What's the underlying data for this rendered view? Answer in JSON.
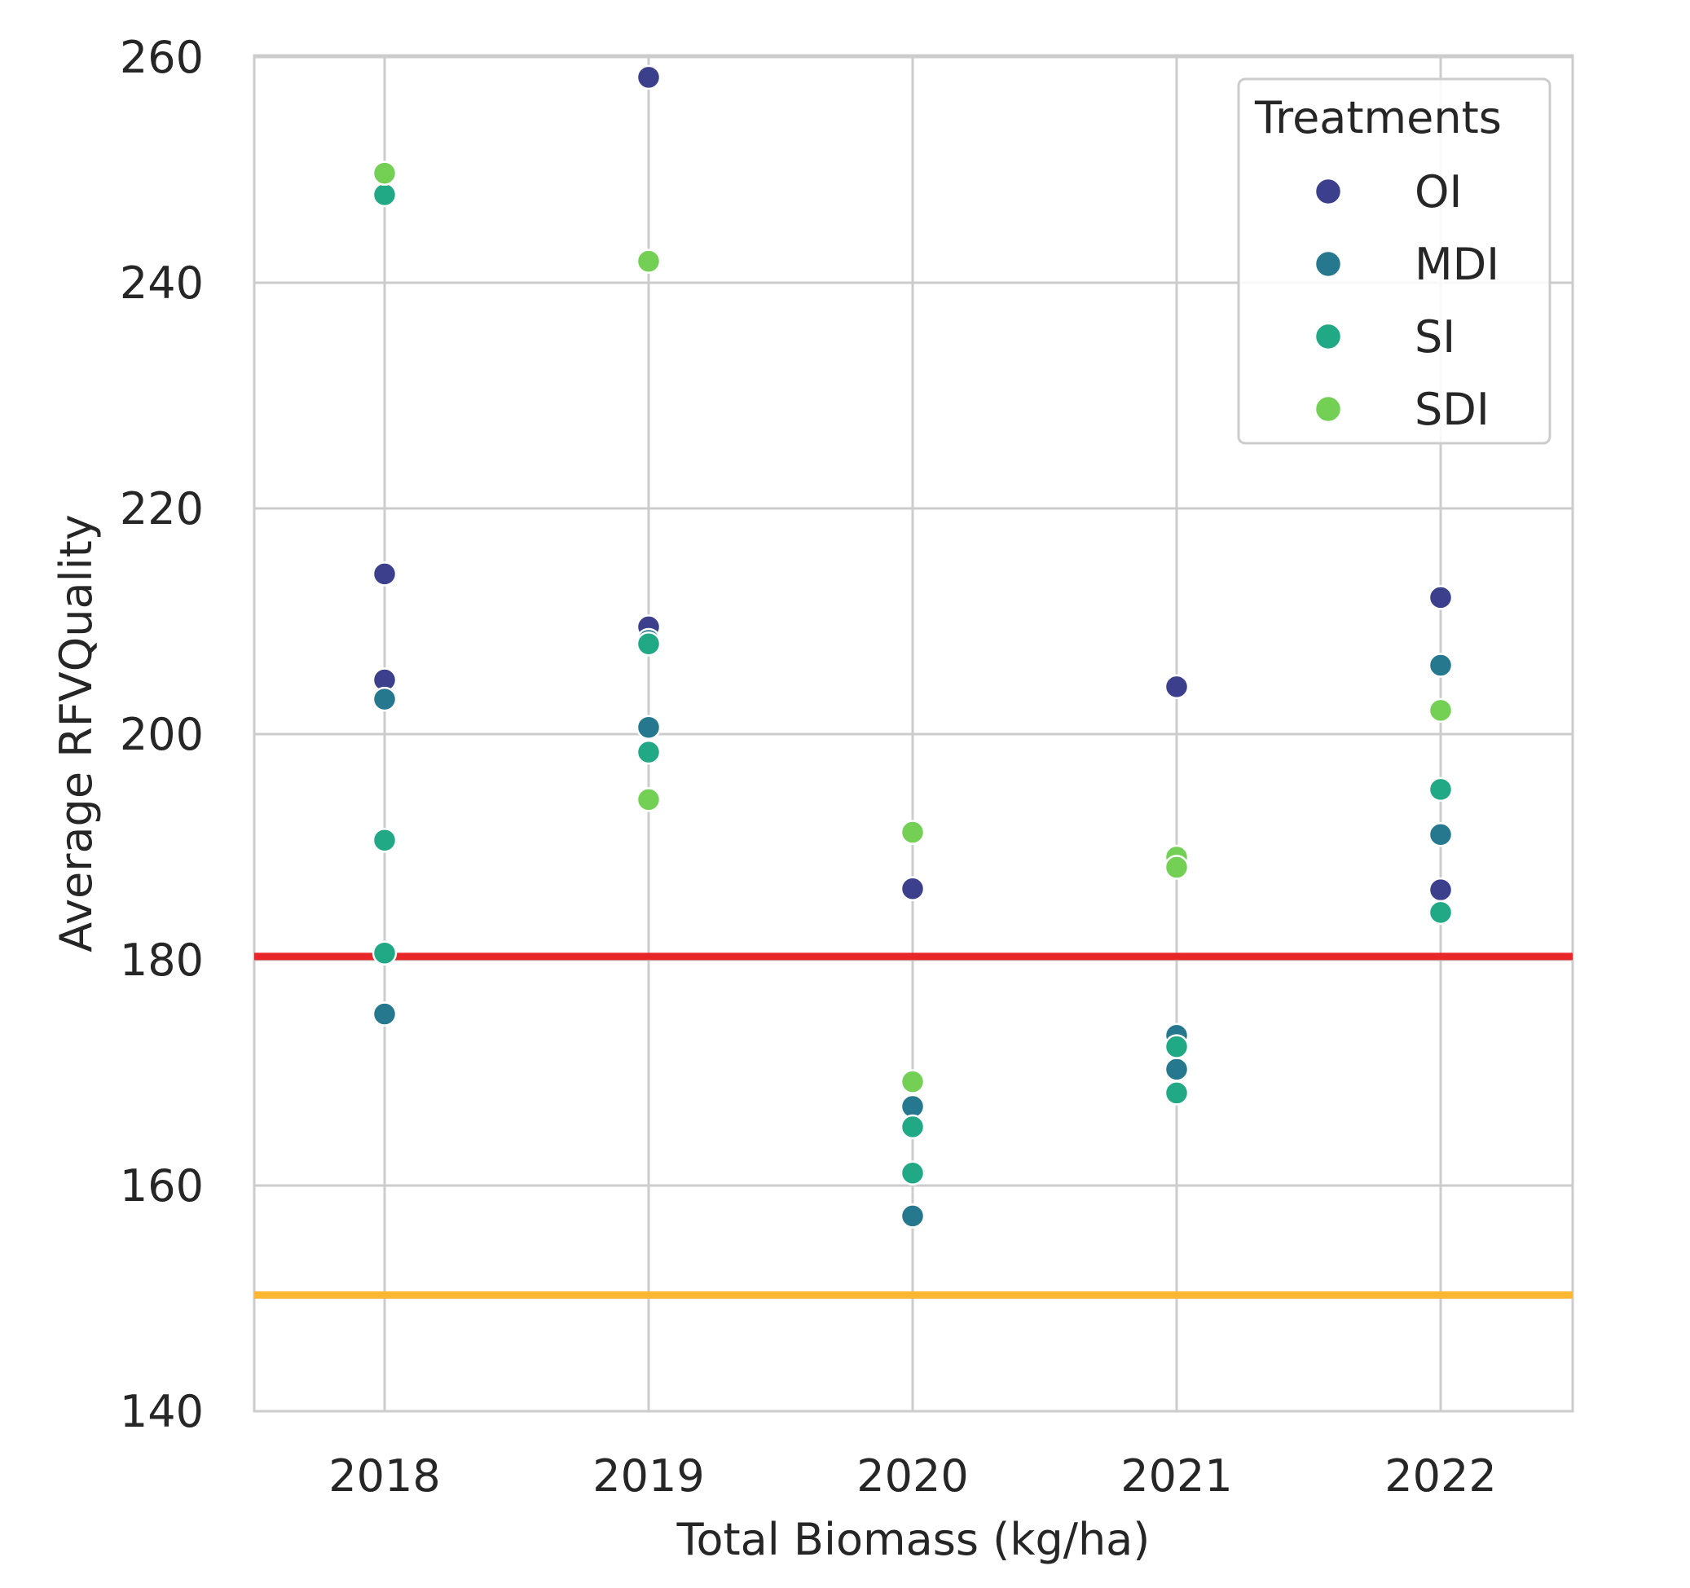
{
  "chart_data": {
    "type": "scatter",
    "title": "",
    "xlabel": "Total Biomass (kg/ha)",
    "ylabel": "Average RFVQuality",
    "categories": [
      "2018",
      "2019",
      "2020",
      "2021",
      "2022"
    ],
    "ylim": [
      140,
      260
    ],
    "yticks": [
      "140",
      "160",
      "180",
      "200",
      "220",
      "240",
      "260"
    ],
    "grid": true,
    "legend": {
      "title": "Treatments",
      "position": "top-right",
      "entries": [
        "OI",
        "MDI",
        "SI",
        "SDI"
      ]
    },
    "series": [
      {
        "name": "OI",
        "color": "#3b3f8c",
        "x": [
          "2018",
          "2018",
          "2019",
          "2019",
          "2020",
          "2021",
          "2022",
          "2022"
        ],
        "y": [
          214.2,
          204.8,
          258.2,
          209.5,
          186.3,
          204.2,
          212.1,
          186.2
        ]
      },
      {
        "name": "MDI",
        "color": "#26788e",
        "x": [
          "2018",
          "2018",
          "2019",
          "2019",
          "2020",
          "2020",
          "2021",
          "2021",
          "2022",
          "2022"
        ],
        "y": [
          203.1,
          175.2,
          208.3,
          200.6,
          167.0,
          157.3,
          173.3,
          170.3,
          206.1,
          191.1
        ]
      },
      {
        "name": "SI",
        "color": "#21a884",
        "x": [
          "2018",
          "2018",
          "2018",
          "2019",
          "2019",
          "2020",
          "2020",
          "2021",
          "2021",
          "2022",
          "2022"
        ],
        "y": [
          247.8,
          190.6,
          180.6,
          208.0,
          198.4,
          165.2,
          161.1,
          172.3,
          168.2,
          195.1,
          184.2
        ]
      },
      {
        "name": "SDI",
        "color": "#73d055",
        "x": [
          "2018",
          "2019",
          "2019",
          "2020",
          "2020",
          "2021",
          "2021",
          "2022"
        ],
        "y": [
          249.7,
          241.9,
          194.2,
          191.3,
          169.2,
          189.1,
          188.2,
          202.1
        ]
      }
    ],
    "reference_lines": [
      {
        "y": 180.3,
        "color": "#e8262a"
      },
      {
        "y": 150.3,
        "color": "#ffb732"
      }
    ]
  }
}
